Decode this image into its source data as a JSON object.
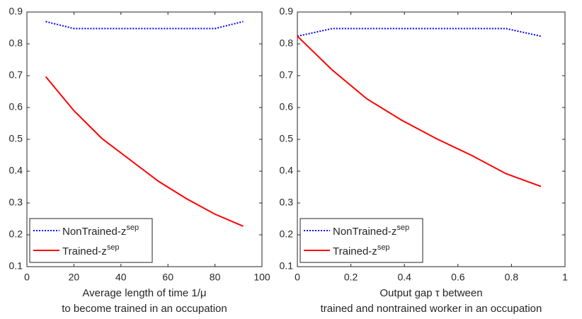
{
  "chart_data": [
    {
      "type": "line",
      "xlabel": [
        "Average length of time 1/μ",
        "to become trained in an occupation"
      ],
      "x": [
        8,
        20,
        32,
        44,
        56,
        68,
        80,
        92
      ],
      "series": [
        {
          "name": "NonTrained-z",
          "name_sup": "sep",
          "color": "#0000ff",
          "style": "dotted",
          "values": [
            0.87,
            0.848,
            0.848,
            0.848,
            0.848,
            0.848,
            0.848,
            0.87
          ]
        },
        {
          "name": "Trained-z",
          "name_sup": "sep",
          "color": "#ff0000",
          "style": "solid",
          "values": [
            0.697,
            0.59,
            0.502,
            0.435,
            0.368,
            0.313,
            0.265,
            0.227
          ]
        }
      ],
      "xlim": [
        0,
        100
      ],
      "xticks": [
        0,
        20,
        40,
        60,
        80,
        100
      ],
      "ylim": [
        0.1,
        0.9
      ],
      "yticks": [
        0.1,
        0.2,
        0.3,
        0.4,
        0.5,
        0.6,
        0.7,
        0.8,
        0.9
      ],
      "legend": "lower-left"
    },
    {
      "type": "line",
      "xlabel": [
        "Output gap τ between",
        "trained and nontrained worker in an occupation"
      ],
      "x": [
        0,
        0.13,
        0.26,
        0.39,
        0.52,
        0.65,
        0.78,
        0.91
      ],
      "series": [
        {
          "name": "NonTrained-z",
          "name_sup": "sep",
          "color": "#0000ff",
          "style": "dotted",
          "values": [
            0.824,
            0.848,
            0.848,
            0.848,
            0.848,
            0.848,
            0.848,
            0.824
          ]
        },
        {
          "name": "Trained-z",
          "name_sup": "sep",
          "color": "#ff0000",
          "style": "solid",
          "values": [
            0.824,
            0.718,
            0.627,
            0.56,
            0.502,
            0.45,
            0.392,
            0.352
          ]
        }
      ],
      "xlim": [
        0,
        1
      ],
      "xticks": [
        0,
        0.2,
        0.4,
        0.6,
        0.8,
        1
      ],
      "ylim": [
        0.1,
        0.9
      ],
      "yticks": [
        0.1,
        0.2,
        0.3,
        0.4,
        0.5,
        0.6,
        0.7,
        0.8,
        0.9
      ],
      "legend": "lower-left"
    }
  ]
}
